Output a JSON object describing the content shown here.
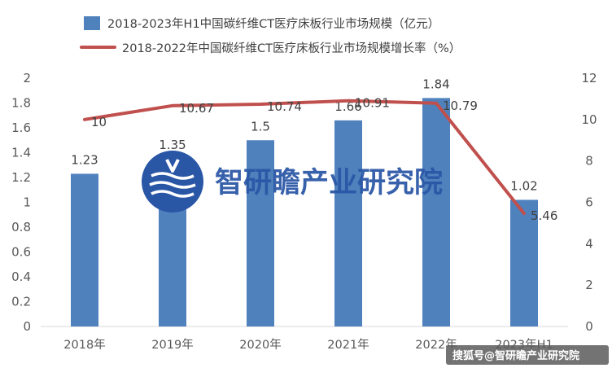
{
  "chart_data": {
    "type": "bar+line",
    "categories": [
      "2018年",
      "2019年",
      "2020年",
      "2021年",
      "2022年",
      "2023年H1"
    ],
    "series": [
      {
        "name": "2018-2023年H1中国碳纤维CT医疗床板行业市场规模（亿元）",
        "type": "bar",
        "axis": "left",
        "values": [
          1.23,
          1.35,
          1.5,
          1.66,
          1.84,
          1.02
        ],
        "labels": [
          "1.23",
          "1.35",
          "1.5",
          "1.66",
          "1.84",
          "1.02"
        ],
        "color": "#4f81bd"
      },
      {
        "name": "2018-2022年中国碳纤维CT医疗床板行业市场规模增长率（%）",
        "type": "line",
        "axis": "right",
        "values": [
          10,
          10.67,
          10.74,
          10.91,
          10.79,
          5.46
        ],
        "labels": [
          "10",
          "10.67",
          "10.74",
          "10.91",
          "10.79",
          "5.46"
        ],
        "color": "#c0504d"
      }
    ],
    "y_left": {
      "min": 0,
      "max": 2,
      "ticks": [
        "0",
        "0.2",
        "0.4",
        "0.6",
        "0.8",
        "1",
        "1.2",
        "1.4",
        "1.6",
        "1.8",
        "2"
      ]
    },
    "y_right": {
      "min": 0,
      "max": 12,
      "ticks": [
        "0",
        "2",
        "4",
        "6",
        "8",
        "10",
        "12"
      ]
    },
    "grid": false,
    "legend_position": "top"
  },
  "watermark": {
    "text": "智研瞻产业研究院"
  },
  "source": {
    "text": "搜狐号@智研瞻产业研究院"
  },
  "colors": {
    "watermark": "#2a56a6",
    "source_bg": "#5b5b5b"
  }
}
